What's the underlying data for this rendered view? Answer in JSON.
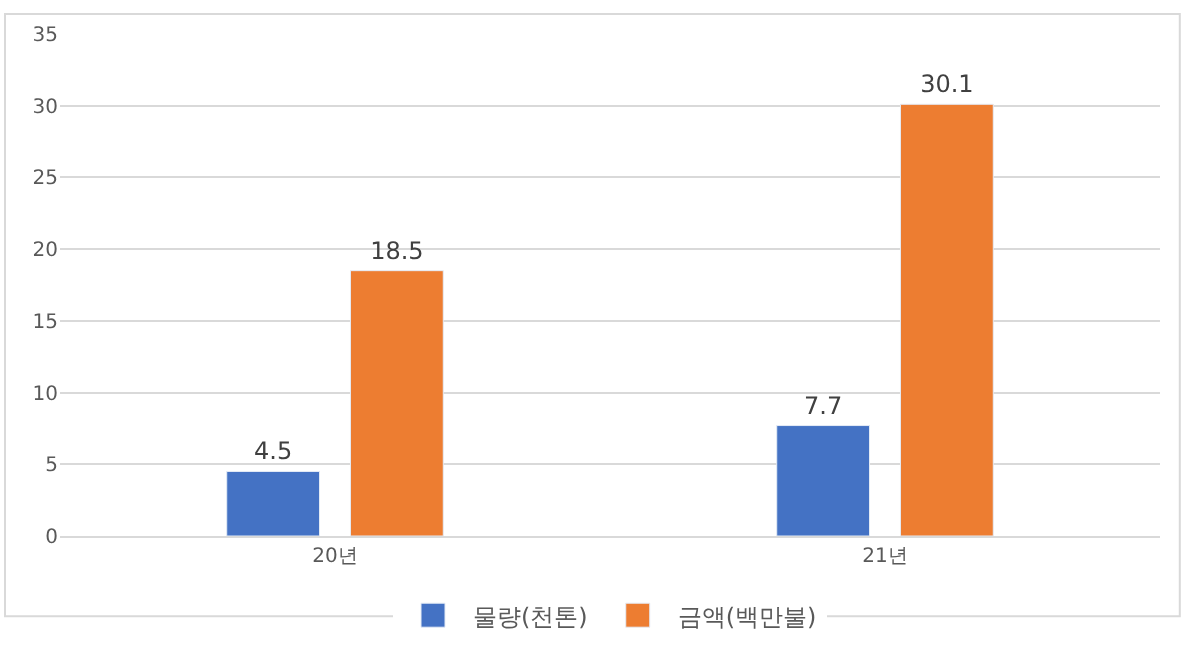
{
  "chart_data": {
    "type": "bar",
    "categories": [
      "20년",
      "21년"
    ],
    "series": [
      {
        "name": "물량(천톤)",
        "color": "#4472c4",
        "values": [
          4.5,
          7.7
        ]
      },
      {
        "name": "금액(백만불)",
        "color": "#ed7d31",
        "values": [
          18.5,
          30.1
        ]
      }
    ],
    "ylim": [
      0,
      35
    ],
    "yticks": [
      0,
      5,
      10,
      15,
      20,
      25,
      30,
      35
    ],
    "grid": "y",
    "legend": "bottom",
    "data_labels": true
  }
}
